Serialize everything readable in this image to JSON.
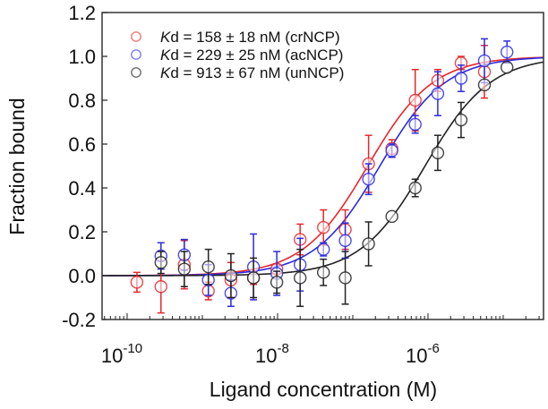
{
  "chart_data": {
    "type": "scatter",
    "title": "",
    "xlabel": "Ligand concentration (M)",
    "ylabel": "Fraction bound",
    "xscale": "log",
    "xlim_log10": [
      -10.333,
      -4.464
    ],
    "ylim": [
      -0.2,
      1.2
    ],
    "xticks": [
      {
        "log10": -10,
        "base": "10",
        "exp": "-10"
      },
      {
        "log10": -8,
        "base": "10",
        "exp": "-8"
      },
      {
        "log10": -6,
        "base": "10",
        "exp": "-6"
      }
    ],
    "yticks": [
      {
        "value": 1.2,
        "label": "1.2"
      },
      {
        "value": 1.0,
        "label": "1.0"
      },
      {
        "value": 0.8,
        "label": "0.8"
      },
      {
        "value": 0.6,
        "label": "0.6"
      },
      {
        "value": 0.4,
        "label": "0.4"
      },
      {
        "value": 0.2,
        "label": "0.2"
      },
      {
        "value": 0.0,
        "label": "0.0"
      },
      {
        "value": -0.2,
        "label": "-0.2"
      }
    ],
    "grid": false,
    "legend_position": "top-left",
    "fit_model": "fraction = c / (Kd + c)",
    "series": [
      {
        "name": "crNCP",
        "legend_k": "K",
        "legend_rest": "d = 158 ± 18 nM (crNCP)",
        "kd_molar": 1.58e-07,
        "color": "#e8262a",
        "legend_color": "#ee7b7e",
        "points": [
          {
            "log10_conc": -9.87,
            "y": -0.03,
            "err": 0.045
          },
          {
            "log10_conc": -9.55,
            "y": -0.05,
            "err": 0.12
          },
          {
            "log10_conc": -9.24,
            "y": 0.05,
            "err": 0.11
          },
          {
            "log10_conc": -8.92,
            "y": -0.07,
            "err": 0.04
          },
          {
            "log10_conc": -8.62,
            "y": -0.02,
            "err": 0.08
          },
          {
            "log10_conc": -8.32,
            "y": -0.01,
            "err": 0.03
          },
          {
            "log10_conc": -8.01,
            "y": 0.03,
            "err": 0.02
          },
          {
            "log10_conc": -7.7,
            "y": 0.165,
            "err": 0.07
          },
          {
            "log10_conc": -7.39,
            "y": 0.22,
            "err": 0.08
          },
          {
            "log10_conc": -7.1,
            "y": 0.21,
            "err": 0.09
          },
          {
            "log10_conc": -6.79,
            "y": 0.51,
            "err": 0.13
          },
          {
            "log10_conc": -6.48,
            "y": 0.58,
            "err": 0.04
          },
          {
            "log10_conc": -6.17,
            "y": 0.8,
            "err": 0.14
          },
          {
            "log10_conc": -5.87,
            "y": 0.89,
            "err": 0.05
          },
          {
            "log10_conc": -5.56,
            "y": 0.97,
            "err": 0.03
          },
          {
            "log10_conc": -5.25,
            "y": 0.93,
            "err": 0.12
          }
        ]
      },
      {
        "name": "acNCP",
        "legend_k": "K",
        "legend_rest": "d = 229 ± 25 nM (acNCP)",
        "kd_molar": 2.29e-07,
        "color": "#2a2ae0",
        "legend_color": "#7f7fea",
        "points": [
          {
            "log10_conc": -9.55,
            "y": 0.09,
            "err": 0.06
          },
          {
            "log10_conc": -9.24,
            "y": 0.095,
            "err": 0.07
          },
          {
            "log10_conc": -8.92,
            "y": -0.02,
            "err": 0.07
          },
          {
            "log10_conc": -8.62,
            "y": -0.08,
            "err": 0.06
          },
          {
            "log10_conc": -8.32,
            "y": 0.04,
            "err": 0.15
          },
          {
            "log10_conc": -8.01,
            "y": 0.01,
            "err": 0.1
          },
          {
            "log10_conc": -7.7,
            "y": 0.05,
            "err": 0.12
          },
          {
            "log10_conc": -7.39,
            "y": 0.12,
            "err": 0.03
          },
          {
            "log10_conc": -7.1,
            "y": 0.16,
            "err": 0.08
          },
          {
            "log10_conc": -6.79,
            "y": 0.44,
            "err": 0.07
          },
          {
            "log10_conc": -6.48,
            "y": 0.57,
            "err": 0.03
          },
          {
            "log10_conc": -6.17,
            "y": 0.69,
            "err": 0.04
          },
          {
            "log10_conc": -5.87,
            "y": 0.83,
            "err": 0.1
          },
          {
            "log10_conc": -5.56,
            "y": 0.9,
            "err": 0.06
          },
          {
            "log10_conc": -5.25,
            "y": 0.98,
            "err": 0.1
          },
          {
            "log10_conc": -4.95,
            "y": 1.02,
            "err": 0.05
          }
        ]
      },
      {
        "name": "unNCP",
        "legend_k": "K",
        "legend_rest": "d = 913 ± 67 nM (unNCP)",
        "kd_molar": 9.13e-07,
        "color": "#222222",
        "legend_color": "#6f6f6f",
        "points": [
          {
            "log10_conc": -9.55,
            "y": 0.06,
            "err": 0.05
          },
          {
            "log10_conc": -9.24,
            "y": 0.03,
            "err": 0.08
          },
          {
            "log10_conc": -8.92,
            "y": 0.04,
            "err": 0.08
          },
          {
            "log10_conc": -8.62,
            "y": 0.0,
            "err": 0.1
          },
          {
            "log10_conc": -8.32,
            "y": -0.01,
            "err": 0.09
          },
          {
            "log10_conc": -8.01,
            "y": -0.03,
            "err": 0.05
          },
          {
            "log10_conc": -7.7,
            "y": -0.01,
            "err": 0.13
          },
          {
            "log10_conc": -7.39,
            "y": 0.015,
            "err": 0.06
          },
          {
            "log10_conc": -7.1,
            "y": -0.01,
            "err": 0.12
          },
          {
            "log10_conc": -6.79,
            "y": 0.145,
            "err": 0.1
          },
          {
            "log10_conc": -6.48,
            "y": 0.27,
            "err": 0.0
          },
          {
            "log10_conc": -6.17,
            "y": 0.4,
            "err": 0.04
          },
          {
            "log10_conc": -5.87,
            "y": 0.56,
            "err": 0.08
          },
          {
            "log10_conc": -5.56,
            "y": 0.71,
            "err": 0.08
          },
          {
            "log10_conc": -5.25,
            "y": 0.87,
            "err": 0.0
          },
          {
            "log10_conc": -4.95,
            "y": 0.95,
            "err": 0.0
          }
        ]
      }
    ]
  }
}
